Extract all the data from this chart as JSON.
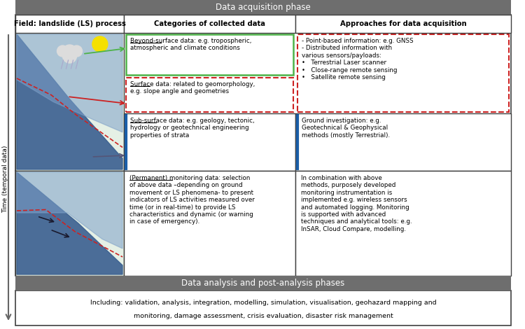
{
  "title_acq": "Data acquisition phase",
  "title_anal": "Data analysis and post-analysis phases",
  "bottom_line1": "Including: validation, analysis, integration, modelling, simulation, visualisation, geohazard mapping and",
  "bottom_line2": "monitoring, damage assessment, crisis evaluation, disaster risk management",
  "col1_hdr": "Field: landslide (LS) process",
  "col2_hdr": "Categories of collected data",
  "col3_hdr": "Approaches for data acquisition",
  "beyond_u": "Beyond-surface data:",
  "beyond_r": " e.g. tropospheric,\natmospheric and climate conditions",
  "surface_u": "Surface data:",
  "surface_r": " related to geomorphology,\ne.g. slope angle and geometries",
  "subsurface_u": "Sub-surface data:",
  "subsurface_r": " e.g. geology, tectonic,\nhydrology or geotechnical engineering\nproperties of strata",
  "monitoring_u": "(Permanent) monitoring data:",
  "monitoring_r": " selection\nof above data –depending on ground\nmovement or LS phenomena- to present\nindicators of LS activities measured over\ntime (or in real-time) to provide LS\ncharacteristics and dynamic (or warning\nin case of emergency).",
  "approach_top": "- Point-based information: e.g. GNSS\n- Distributed information with\nvarious sensors/payloads:\n•   Terrestrial Laser scanner\n•   Close-range remote sensing\n•   Satellite remote sensing",
  "approach_sub": "Ground investigation: e.g.\nGeotechnical & Geophysical\nmethods (mostly Terrestrial).",
  "approach_bot": "In combination with above\nmethods, purposely developed\nmonitoring instrumentation is\nimplemented e.g. wireless sensors\nand automated logging. Monitoring\nis supported with advanced\ntechniques and analytical tools: e.g.\nInSAR, Cloud Compare, modelling.",
  "hdr_fc": "#6e6e6e",
  "hdr_tc": "#ffffff",
  "green_ec": "#4db348",
  "red_ec": "#cc2222",
  "blue_ec": "#1a5ea8",
  "dark_ec": "#404040",
  "cell_bg": "#e5f0e5",
  "time_lbl": "Time (temporal data)"
}
